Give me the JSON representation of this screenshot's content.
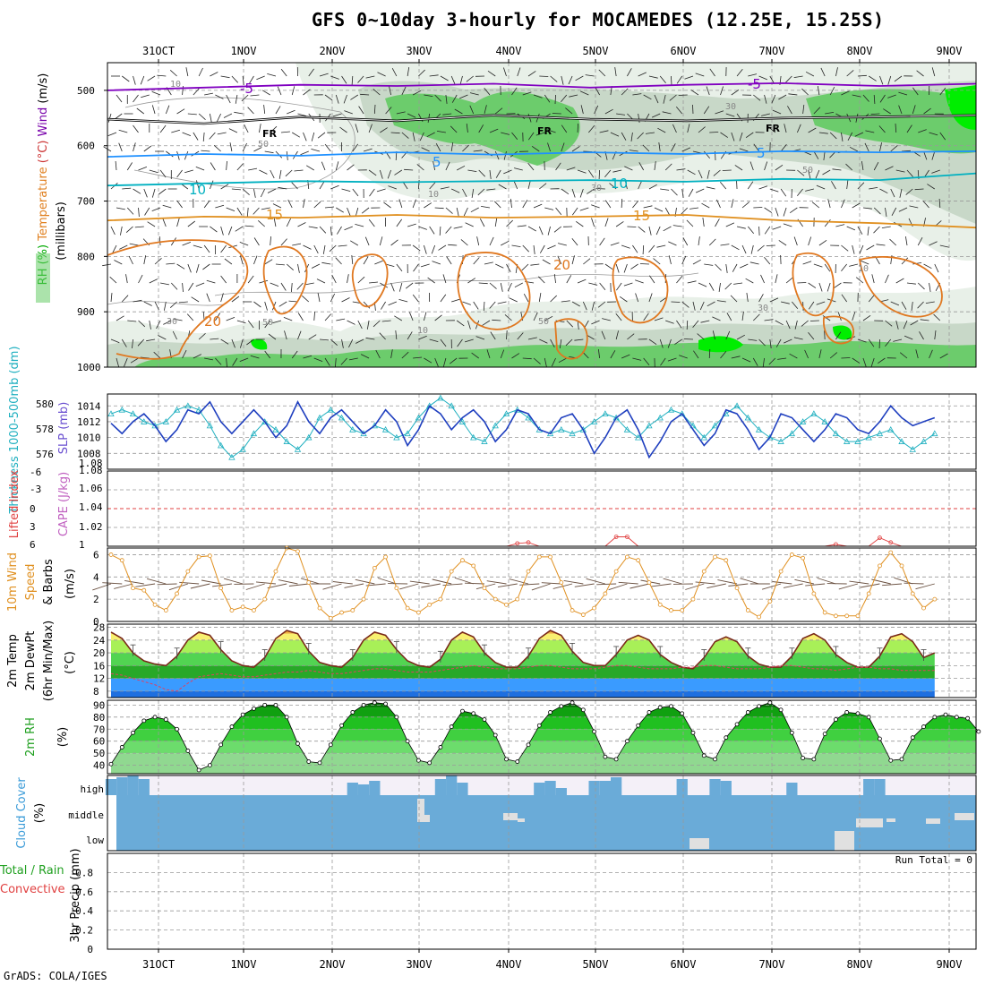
{
  "title": "GFS 0~10day 3-hourly for MOCAMEDES (12.25E, 15.25S)",
  "footer": "GrADS: COLA/IGES",
  "chart_data": [
    {
      "id": "upper-air",
      "type": "heatmap",
      "ylabel_parts": [
        {
          "text": "RH (%)",
          "color": "#00aa00"
        },
        {
          "text": "Temperature",
          "color": "#e08020"
        },
        {
          "text": "(°C)",
          "color": "#cc3333"
        },
        {
          "text": "Wind",
          "color": "#7700aa"
        },
        {
          "text": "(m/s)",
          "color": "#000000"
        }
      ],
      "ylabel2": "(millibars)",
      "y_ticks": [
        500,
        600,
        700,
        800,
        900,
        1000
      ],
      "ylim": [
        450,
        1000
      ],
      "x_dates": [
        "31OCT",
        "1NOV",
        "2NOV",
        "3NOV",
        "4NOV",
        "5NOV",
        "6NOV",
        "7NOV",
        "8NOV",
        "9NOV"
      ],
      "isotherm_labels": [
        {
          "text": "-5",
          "color": "#8000c0"
        },
        {
          "text": "FR",
          "color": "#000000"
        },
        {
          "text": "5",
          "color": "#1e90ff"
        },
        {
          "text": "10",
          "color": "#00b0c0"
        },
        {
          "text": "15",
          "color": "#e09020"
        },
        {
          "text": "20",
          "color": "#e07820"
        }
      ],
      "isotherms": [
        {
          "name": "-5",
          "color": "#8000c0",
          "p": [
            500,
            495,
            490,
            492,
            488,
            495,
            490,
            487,
            492,
            488
          ]
        },
        {
          "name": "FR",
          "color": "#000000",
          "p": [
            552,
            560,
            548,
            555,
            545,
            552,
            555,
            550,
            548,
            545
          ]
        },
        {
          "name": "5",
          "color": "#1e90ff",
          "p": [
            620,
            615,
            618,
            612,
            616,
            612,
            615,
            610,
            612,
            610
          ]
        },
        {
          "name": "10",
          "color": "#00b0c0",
          "p": [
            672,
            668,
            664,
            666,
            664,
            662,
            665,
            660,
            662,
            650
          ]
        },
        {
          "name": "15",
          "color": "#e09020",
          "p": [
            735,
            728,
            730,
            725,
            730,
            728,
            725,
            735,
            740,
            748
          ]
        }
      ],
      "rh_contour_labels": [
        "10",
        "30",
        "50"
      ]
    },
    {
      "id": "slp-thickness",
      "type": "line",
      "ylabel_left": "Thickness 1000-500mb (dm)",
      "ylabel_right": "SLP (mb)",
      "left_ticks": [
        576,
        578,
        580
      ],
      "right_ticks": [
        1008,
        1010,
        1012,
        1014
      ],
      "right_extra_tick": "1.08",
      "ylim_slp": [
        1006,
        1015.5
      ],
      "series": [
        {
          "name": "SLP (mb)",
          "color": "#1f3fbf",
          "values": [
            1011.8,
            1010.5,
            1012.0,
            1013.0,
            1011.5,
            1009.5,
            1011.0,
            1013.5,
            1013.0,
            1014.5,
            1012.0,
            1010.5,
            1012.0,
            1013.5,
            1012.0,
            1010.0,
            1011.5,
            1014.5,
            1012.0,
            1010.5,
            1012.5,
            1013.5,
            1012.0,
            1010.5,
            1011.5,
            1013.5,
            1012.0,
            1009.0,
            1011.0,
            1014.0,
            1013.0,
            1011.0,
            1012.5,
            1013.5,
            1012.0,
            1009.5,
            1011.0,
            1013.5,
            1013.0,
            1011.0,
            1010.5,
            1012.5,
            1013.0,
            1011.0,
            1008.0,
            1010.0,
            1012.5,
            1013.5,
            1011.0,
            1007.5,
            1009.5,
            1012.0,
            1013.0,
            1011.0,
            1009.0,
            1010.5,
            1013.5,
            1013.0,
            1011.0,
            1008.5,
            1010.0,
            1013.0,
            1012.5,
            1011.0,
            1009.5,
            1011.0,
            1013.0,
            1012.5,
            1011.0,
            1010.5,
            1012.0,
            1014.0,
            1012.5,
            1011.5,
            1012.0,
            1012.5
          ]
        },
        {
          "name": "Thickness (dm)",
          "color": "#20b0c0",
          "values": [
            1013,
            1013.5,
            1013,
            1012,
            1011.5,
            1012,
            1013.5,
            1014,
            1013.5,
            1011.5,
            1009,
            1007.5,
            1008.5,
            1010.5,
            1012,
            1011,
            1009.5,
            1008.5,
            1010,
            1012.5,
            1013.5,
            1012.5,
            1011,
            1010.5,
            1011.5,
            1011,
            1010,
            1010.5,
            1012.5,
            1014,
            1015,
            1014,
            1012,
            1010,
            1009.5,
            1011.5,
            1013,
            1013.5,
            1012.5,
            1011,
            1010.5,
            1011,
            1010.5,
            1011,
            1012,
            1013,
            1012.5,
            1011,
            1010,
            1011.5,
            1012.5,
            1013.5,
            1013,
            1011.5,
            1010,
            1011.5,
            1013,
            1014,
            1012.5,
            1011,
            1010,
            1009.5,
            1010.5,
            1012,
            1013,
            1012,
            1010.5,
            1009.5,
            1009.5,
            1010,
            1010.5,
            1011,
            1009.5,
            1008.5,
            1009.5,
            1010.5
          ]
        }
      ]
    },
    {
      "id": "cape-li",
      "type": "line",
      "ylabel_left": "Lifted Index",
      "ylabel_right": "CAPE (J/kg)",
      "left_ticks": [
        "-6",
        "-3",
        "0",
        "3",
        "6"
      ],
      "right_ticks": [
        "1",
        "1.02",
        "1.04",
        "1.06",
        "1.08"
      ],
      "series": [
        {
          "name": "CAPE (J/kg)",
          "color": "#e04040",
          "values": [
            1,
            1,
            1,
            1,
            1,
            1,
            1,
            1,
            1,
            1,
            1,
            1,
            1,
            1,
            1,
            1,
            1,
            1,
            1,
            1,
            1,
            1,
            1,
            1,
            1,
            1,
            1,
            1,
            1,
            1,
            1,
            1,
            1,
            1,
            1,
            1,
            1,
            1.003,
            1.004,
            1,
            1,
            1,
            1,
            1,
            1,
            1,
            1.01,
            1.01,
            1,
            1,
            1,
            1,
            1,
            1,
            1,
            1,
            1,
            1,
            1,
            1,
            1,
            1,
            1,
            1,
            1,
            1,
            1.002,
            1,
            1,
            1,
            1.009,
            1.004,
            1,
            1,
            1,
            1
          ]
        }
      ]
    },
    {
      "id": "wind10m",
      "type": "line",
      "ylabel_parts": [
        "10m Wind",
        "Speed",
        "& Barbs",
        "(m/s)"
      ],
      "y_ticks": [
        0,
        2,
        4,
        6
      ],
      "ylim": [
        0,
        6.6
      ],
      "series": [
        {
          "name": "10m Wind Speed",
          "color": "#e09020",
          "values": [
            6.0,
            5.5,
            3.0,
            2.8,
            1.5,
            1.0,
            2.5,
            4.5,
            5.8,
            5.9,
            3.0,
            1.0,
            1.3,
            1.0,
            2.0,
            4.5,
            6.6,
            6.3,
            3.5,
            1.2,
            0.3,
            0.8,
            1.0,
            2.0,
            4.8,
            5.8,
            3.0,
            1.2,
            0.8,
            1.5,
            2.0,
            4.5,
            5.5,
            5.0,
            3.0,
            2.0,
            1.5,
            2.0,
            4.5,
            5.8,
            5.8,
            3.5,
            1.0,
            0.6,
            1.2,
            2.5,
            4.5,
            5.8,
            5.5,
            3.5,
            1.5,
            1.0,
            1.0,
            2.0,
            4.5,
            5.8,
            5.5,
            3.0,
            1.0,
            0.4,
            1.8,
            4.5,
            6.0,
            5.7,
            2.5,
            0.8,
            0.5,
            0.5,
            0.5,
            2.5,
            5.0,
            6.2,
            5.0,
            2.5,
            1.2,
            2.0
          ]
        }
      ]
    },
    {
      "id": "temp2m",
      "type": "area",
      "ylabel_parts": [
        "2m Temp",
        "2m DewPt",
        "(6hr Min/Max)",
        "(°C)"
      ],
      "y_ticks": [
        8,
        12,
        16,
        20,
        24,
        28
      ],
      "ylim": [
        6,
        29
      ],
      "series": [
        {
          "name": "2m Temp",
          "color": "#7a2a1a",
          "values": [
            26.5,
            24.5,
            20.0,
            17.5,
            16.5,
            16.0,
            19.0,
            24.0,
            26.5,
            25.5,
            21.0,
            17.5,
            16.0,
            15.5,
            18.5,
            24.5,
            27.0,
            26.0,
            20.5,
            17.0,
            16.0,
            15.5,
            18.5,
            24.0,
            26.5,
            25.5,
            21.0,
            17.5,
            16.0,
            15.5,
            18.0,
            24.0,
            26.5,
            25.0,
            20.0,
            17.0,
            15.5,
            15.5,
            19.0,
            24.5,
            27.0,
            25.5,
            20.5,
            17.0,
            16.0,
            16.0,
            19.5,
            24.0,
            25.5,
            24.0,
            19.5,
            17.0,
            15.5,
            15.0,
            18.5,
            23.5,
            25.0,
            23.5,
            19.0,
            16.5,
            15.5,
            15.5,
            19.0,
            24.5,
            26.0,
            24.0,
            19.5,
            17.0,
            15.5,
            15.5,
            19.0,
            25.0,
            26.0,
            23.5,
            18.5,
            20.0
          ]
        },
        {
          "name": "2m DewPt",
          "color": "#e04060",
          "values": [
            13.5,
            13.0,
            12.0,
            11.0,
            10.0,
            8.5,
            8.0,
            10.5,
            12.5,
            13.0,
            13.5,
            13.0,
            12.5,
            12.5,
            13.0,
            13.5,
            14.0,
            14.0,
            14.5,
            14.0,
            13.5,
            13.5,
            14.0,
            14.5,
            15.0,
            15.0,
            14.5,
            14.0,
            14.0,
            14.0,
            14.5,
            15.0,
            15.5,
            16.0,
            15.5,
            15.0,
            15.0,
            15.0,
            15.5,
            16.0,
            16.0,
            15.5,
            15.0,
            15.0,
            15.0,
            15.5,
            16.0,
            16.0,
            15.5,
            15.0,
            15.0,
            15.0,
            15.5,
            15.5,
            16.0,
            16.0,
            15.5,
            15.0,
            15.0,
            15.0,
            15.5,
            16.0,
            16.0,
            15.5,
            15.0,
            15.0,
            14.5,
            15.0,
            15.5,
            15.5,
            15.0,
            15.0,
            14.5,
            14.5,
            14.5,
            14.5
          ]
        }
      ]
    },
    {
      "id": "rh2m",
      "type": "area",
      "ylabel_parts": [
        "2m RH",
        "(%)"
      ],
      "y_ticks": [
        40,
        50,
        60,
        70,
        80,
        90
      ],
      "ylim": [
        33,
        94
      ],
      "series": [
        {
          "name": "2m RH",
          "color": "#000000",
          "values": [
            41,
            55,
            67,
            77,
            80,
            78,
            70,
            52,
            36,
            40,
            57,
            72,
            82,
            87,
            90,
            90,
            80,
            58,
            43,
            42,
            57,
            73,
            84,
            90,
            92,
            91,
            80,
            60,
            44,
            42,
            55,
            72,
            85,
            83,
            78,
            65,
            45,
            43,
            57,
            73,
            84,
            89,
            92,
            86,
            68,
            47,
            45,
            60,
            73,
            84,
            88,
            89,
            83,
            67,
            48,
            45,
            63,
            74,
            84,
            89,
            92,
            86,
            67,
            46,
            45,
            66,
            78,
            84,
            83,
            80,
            62,
            44,
            45,
            63,
            72,
            80,
            82,
            80,
            79,
            68
          ]
        }
      ]
    },
    {
      "id": "cloud",
      "type": "area",
      "ylabel_parts": [
        "Cloud Cover",
        "(%)"
      ],
      "layers": [
        "high",
        "middle",
        "low"
      ]
    },
    {
      "id": "precip",
      "type": "bar",
      "ylabel_parts": [
        "Total / Rain",
        "Convective",
        "3hr Precip (mm)"
      ],
      "y_ticks": [
        "0",
        "0.2",
        "0.4",
        "0.6",
        "0.8"
      ],
      "ylim": [
        0,
        1.0
      ],
      "run_total": "Run Total = 0",
      "values": []
    }
  ]
}
